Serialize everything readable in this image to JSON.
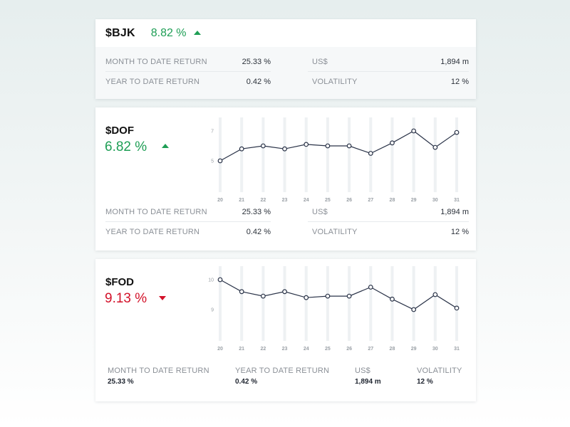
{
  "cards": [
    {
      "ticker": "$BJK",
      "change": "8.82 %",
      "direction": "up",
      "stats": {
        "mtd_label": "MONTH TO DATE RETURN",
        "mtd_value": "25.33 %",
        "ytd_label": "YEAR TO DATE RETURN",
        "ytd_value": "0.42 %",
        "usd_label": "US$",
        "usd_value": "1,894 m",
        "vol_label": "VOLATILITY",
        "vol_value": "12 %"
      }
    },
    {
      "ticker": "$DOF",
      "change": "6.82 %",
      "direction": "up",
      "stats": {
        "mtd_label": "MONTH TO DATE RETURN",
        "mtd_value": "25.33 %",
        "ytd_label": "YEAR TO DATE RETURN",
        "ytd_value": "0.42 %",
        "usd_label": "US$",
        "usd_value": "1,894 m",
        "vol_label": "VOLATILITY",
        "vol_value": "12 %"
      }
    },
    {
      "ticker": "$FOD",
      "change": "9.13 %",
      "direction": "down",
      "stats": {
        "mtd_label": "MONTH TO DATE RETURN",
        "mtd_value": "25.33 %",
        "ytd_label": "YEAR TO DATE RETURN",
        "ytd_value": "0.42 %",
        "usd_label": "US$",
        "usd_value": "1,894 m",
        "vol_label": "VOLATILITY",
        "vol_value": "12 %"
      }
    }
  ],
  "colors": {
    "up": "#1e9e55",
    "down": "#d3122a",
    "line": "#2a3348"
  },
  "chart_data": [
    {
      "type": "line",
      "x": [
        "20",
        "21",
        "22",
        "23",
        "24",
        "25",
        "26",
        "27",
        "28",
        "29",
        "30",
        "31"
      ],
      "values": [
        5.0,
        5.8,
        6.0,
        5.8,
        6.1,
        6.0,
        6.0,
        5.5,
        6.2,
        7.0,
        5.9,
        6.9
      ],
      "yticks": [
        "7",
        "5"
      ],
      "ylim": [
        5,
        7
      ],
      "grid": true
    },
    {
      "type": "line",
      "x": [
        "20",
        "21",
        "22",
        "23",
        "24",
        "25",
        "26",
        "27",
        "28",
        "29",
        "30",
        "31"
      ],
      "values": [
        10.0,
        9.6,
        9.45,
        9.6,
        9.4,
        9.45,
        9.45,
        9.75,
        9.35,
        9.0,
        9.5,
        9.05
      ],
      "yticks": [
        "10",
        "9"
      ],
      "ylim": [
        9,
        10
      ],
      "grid": true
    }
  ]
}
